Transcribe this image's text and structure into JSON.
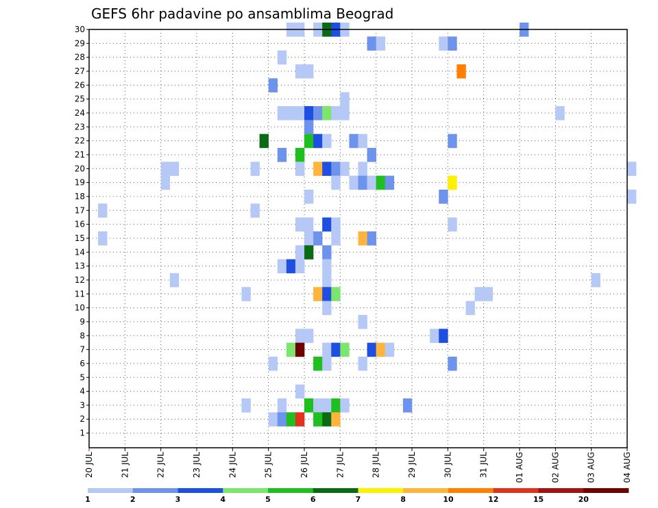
{
  "chart_data": {
    "type": "heatmap",
    "title": "GEFS 6hr padavine po ansamblima Beograd",
    "y_tick_labels": [
      "1",
      "2",
      "3",
      "4",
      "5",
      "6",
      "7",
      "8",
      "9",
      "10",
      "11",
      "12",
      "13",
      "14",
      "15",
      "16",
      "17",
      "18",
      "19",
      "20",
      "21",
      "22",
      "23",
      "24",
      "25",
      "26",
      "27",
      "28",
      "29",
      "30"
    ],
    "x_tick_labels": [
      "20 JUL",
      "21 JUL",
      "22 JUL",
      "23 JUL",
      "24 JUL",
      "25 JUL",
      "26 JUL",
      "27 JUL",
      "28 JUL",
      "29 JUL",
      "30 JUL",
      "31 JUL",
      "01 AUG",
      "02 AUG",
      "03 AUG",
      "04 AUG"
    ],
    "grid": true,
    "steps_per_day": 4,
    "colorbar": {
      "labels": [
        "1",
        "2",
        "3",
        "4",
        "5",
        "6",
        "7",
        "8",
        "10",
        "12",
        "15",
        "20"
      ],
      "colors": [
        "#b5c8f6",
        "#6e93ec",
        "#1f4fe0",
        "#7ce66c",
        "#1ebf1e",
        "#0b6b14",
        "#fff000",
        "#ffb43c",
        "#ff7f00",
        "#e0321e",
        "#a01414",
        "#6e0000"
      ]
    },
    "cells": [
      [
        30,
        22,
        0
      ],
      [
        30,
        23,
        0
      ],
      [
        30,
        25,
        0
      ],
      [
        30,
        26,
        5
      ],
      [
        30,
        27,
        2
      ],
      [
        30,
        28,
        0
      ],
      [
        30,
        48,
        1
      ],
      [
        29,
        31,
        1
      ],
      [
        29,
        32,
        0
      ],
      [
        29,
        39,
        0
      ],
      [
        29,
        40,
        1
      ],
      [
        28,
        21,
        0
      ],
      [
        27,
        23,
        0
      ],
      [
        27,
        24,
        0
      ],
      [
        27,
        41,
        8
      ],
      [
        26,
        20,
        1
      ],
      [
        25,
        28,
        0
      ],
      [
        24,
        21,
        0
      ],
      [
        24,
        22,
        0
      ],
      [
        24,
        23,
        0
      ],
      [
        24,
        24,
        2
      ],
      [
        24,
        25,
        1
      ],
      [
        24,
        26,
        3
      ],
      [
        24,
        27,
        0
      ],
      [
        24,
        28,
        0
      ],
      [
        24,
        52,
        0
      ],
      [
        23,
        24,
        1
      ],
      [
        22,
        19,
        5
      ],
      [
        22,
        24,
        4
      ],
      [
        22,
        25,
        2
      ],
      [
        22,
        26,
        0
      ],
      [
        22,
        29,
        1
      ],
      [
        22,
        30,
        0
      ],
      [
        22,
        40,
        1
      ],
      [
        21,
        21,
        1
      ],
      [
        21,
        23,
        4
      ],
      [
        21,
        31,
        1
      ],
      [
        20,
        8,
        0
      ],
      [
        20,
        9,
        0
      ],
      [
        20,
        18,
        0
      ],
      [
        20,
        23,
        0
      ],
      [
        20,
        25,
        7
      ],
      [
        20,
        26,
        2
      ],
      [
        20,
        27,
        1
      ],
      [
        20,
        28,
        0
      ],
      [
        20,
        30,
        0
      ],
      [
        20,
        60,
        0
      ],
      [
        19,
        8,
        0
      ],
      [
        19,
        27,
        0
      ],
      [
        19,
        29,
        0
      ],
      [
        19,
        30,
        1
      ],
      [
        19,
        31,
        0
      ],
      [
        19,
        32,
        4
      ],
      [
        19,
        33,
        1
      ],
      [
        19,
        40,
        6
      ],
      [
        18,
        24,
        0
      ],
      [
        18,
        39,
        1
      ],
      [
        18,
        60,
        0
      ],
      [
        17,
        1,
        0
      ],
      [
        17,
        18,
        0
      ],
      [
        16,
        23,
        0
      ],
      [
        16,
        24,
        0
      ],
      [
        16,
        26,
        2
      ],
      [
        16,
        27,
        0
      ],
      [
        16,
        40,
        0
      ],
      [
        15,
        1,
        0
      ],
      [
        15,
        24,
        0
      ],
      [
        15,
        25,
        1
      ],
      [
        15,
        27,
        0
      ],
      [
        15,
        30,
        7
      ],
      [
        15,
        31,
        1
      ],
      [
        14,
        23,
        0
      ],
      [
        14,
        24,
        5
      ],
      [
        14,
        26,
        1
      ],
      [
        13,
        21,
        0
      ],
      [
        13,
        22,
        2
      ],
      [
        13,
        23,
        0
      ],
      [
        13,
        26,
        0
      ],
      [
        12,
        9,
        0
      ],
      [
        12,
        26,
        0
      ],
      [
        12,
        56,
        0
      ],
      [
        11,
        17,
        0
      ],
      [
        11,
        25,
        7
      ],
      [
        11,
        26,
        2
      ],
      [
        11,
        27,
        3
      ],
      [
        11,
        43,
        0
      ],
      [
        11,
        44,
        0
      ],
      [
        10,
        26,
        0
      ],
      [
        10,
        42,
        0
      ],
      [
        9,
        30,
        0
      ],
      [
        8,
        23,
        0
      ],
      [
        8,
        24,
        0
      ],
      [
        8,
        38,
        0
      ],
      [
        8,
        39,
        2
      ],
      [
        7,
        22,
        3
      ],
      [
        7,
        23,
        11
      ],
      [
        7,
        26,
        0
      ],
      [
        7,
        27,
        2
      ],
      [
        7,
        28,
        3
      ],
      [
        7,
        31,
        2
      ],
      [
        7,
        32,
        7
      ],
      [
        7,
        33,
        0
      ],
      [
        6,
        20,
        0
      ],
      [
        6,
        25,
        4
      ],
      [
        6,
        26,
        0
      ],
      [
        6,
        30,
        0
      ],
      [
        6,
        40,
        1
      ],
      [
        4,
        23,
        0
      ],
      [
        3,
        17,
        0
      ],
      [
        3,
        21,
        0
      ],
      [
        3,
        24,
        4
      ],
      [
        3,
        25,
        0
      ],
      [
        3,
        26,
        0
      ],
      [
        3,
        27,
        4
      ],
      [
        3,
        28,
        0
      ],
      [
        3,
        35,
        1
      ],
      [
        2,
        20,
        0
      ],
      [
        2,
        21,
        1
      ],
      [
        2,
        22,
        4
      ],
      [
        2,
        23,
        9
      ],
      [
        2,
        25,
        4
      ],
      [
        2,
        26,
        5
      ],
      [
        2,
        27,
        7
      ]
    ]
  }
}
